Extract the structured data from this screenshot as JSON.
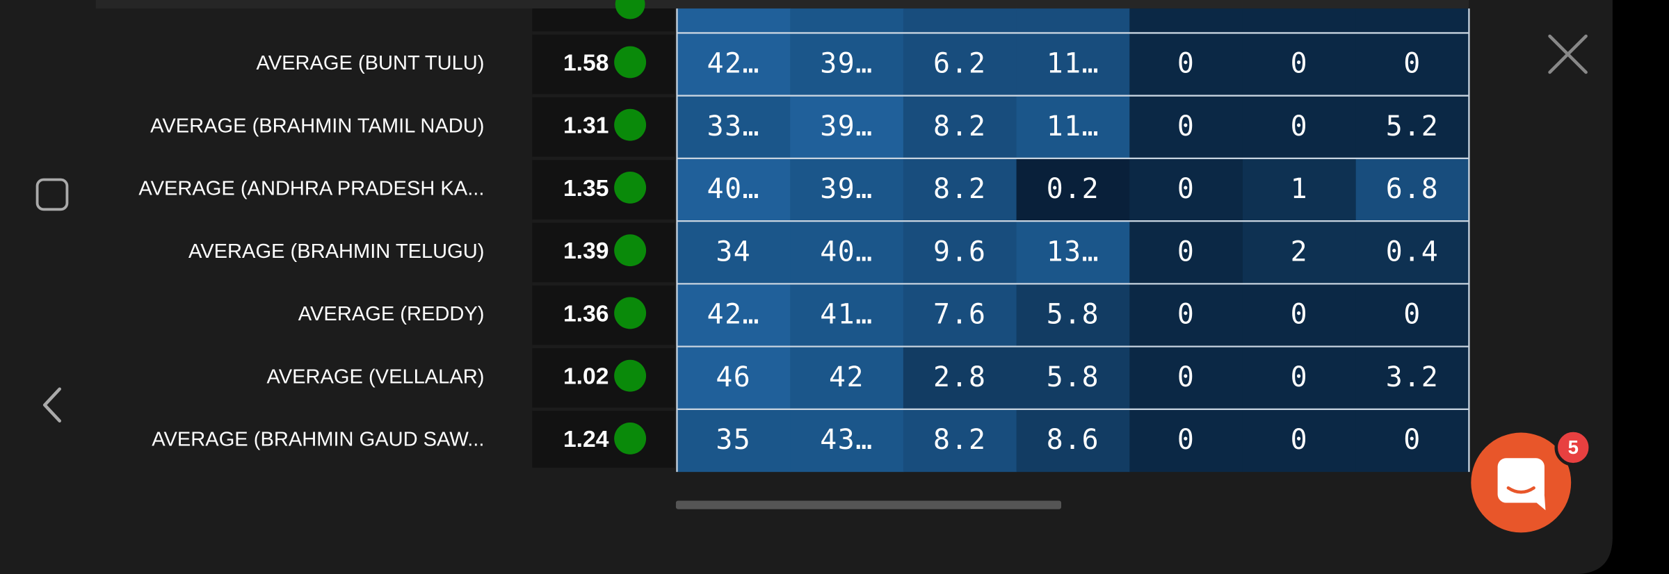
{
  "table": {
    "rows": [
      {
        "label": "AVERAGE (BUNT TULU)",
        "score": 1.58,
        "cells": [
          "42…",
          "39…",
          "6.2",
          "11…",
          "0",
          "0",
          "0"
        ]
      },
      {
        "label": "AVERAGE (BRAHMIN TAMIL NADU)",
        "score": 1.31,
        "cells": [
          "33…",
          "39…",
          "8.2",
          "11…",
          "0",
          "0",
          "5.2"
        ]
      },
      {
        "label": "AVERAGE (ANDHRA PRADESH KA...",
        "score": 1.35,
        "cells": [
          "40…",
          "39…",
          "8.2",
          "0.2",
          "0",
          "1",
          "6.8"
        ]
      },
      {
        "label": "AVERAGE (BRAHMIN TELUGU)",
        "score": 1.39,
        "cells": [
          "34",
          "40…",
          "9.6",
          "13…",
          "0",
          "2",
          "0.4"
        ]
      },
      {
        "label": "AVERAGE (REDDY)",
        "score": 1.36,
        "cells": [
          "42…",
          "41…",
          "7.6",
          "5.8",
          "0",
          "0",
          "0"
        ]
      },
      {
        "label": "AVERAGE (VELLALAR)",
        "score": 1.02,
        "cells": [
          "46",
          "42",
          "2.8",
          "5.8",
          "0",
          "0",
          "3.2"
        ]
      },
      {
        "label": "AVERAGE (BRAHMIN GAUD SAW...",
        "score": 1.24,
        "cells": [
          "35",
          "43…",
          "8.2",
          "8.6",
          "0",
          "0",
          "0"
        ]
      }
    ]
  },
  "badge": 5
}
